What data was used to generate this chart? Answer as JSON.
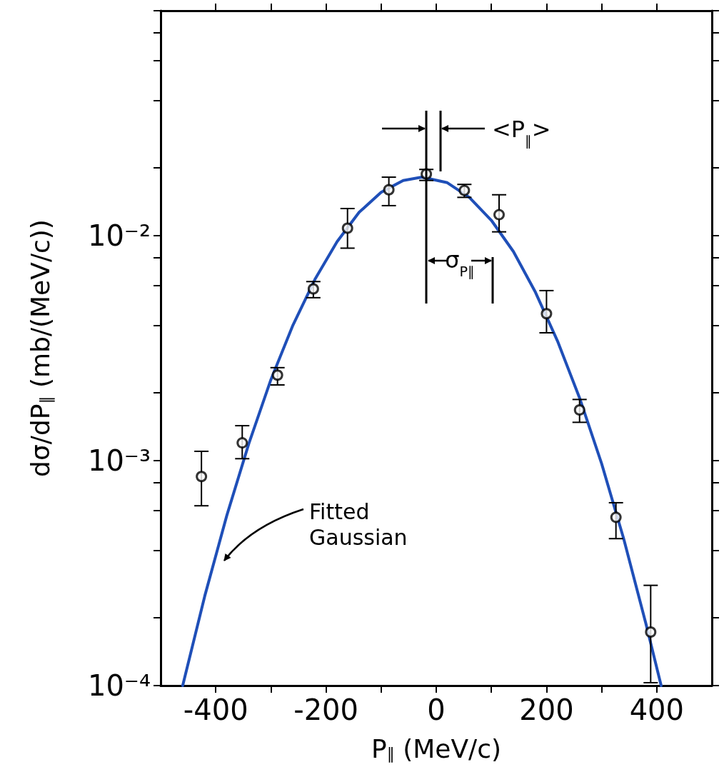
{
  "chart_data": {
    "type": "scatter",
    "xlabel": "P$_{∥}$ (MeV/c)",
    "ylabel": "dσ/dP$_{∥}$ (mb/(MeV/c))",
    "log": "y",
    "grid": false,
    "xlim": [
      -500,
      500
    ],
    "xticks": [
      -400,
      {
        "value": -300,
        "label": null
      },
      -200,
      {
        "value": -100,
        "label": null
      },
      0,
      {
        "value": 100,
        "label": null
      },
      200,
      {
        "value": 300,
        "label": null
      },
      400
    ],
    "ylim": [
      0.0001,
      0.1
    ],
    "yticks": [
      {
        "value": 0.0001,
        "label": "10⁻⁴"
      },
      {
        "value": 0.0002,
        "label": null
      },
      {
        "value": 0.0004,
        "label": null
      },
      {
        "value": 0.0006,
        "label": null
      },
      {
        "value": 0.0008,
        "label": null
      },
      {
        "value": 0.001,
        "label": "10⁻³"
      },
      {
        "value": 0.002,
        "label": null
      },
      {
        "value": 0.004,
        "label": null
      },
      {
        "value": 0.006,
        "label": null
      },
      {
        "value": 0.008,
        "label": null
      },
      {
        "value": 0.01,
        "label": "10⁻²"
      },
      {
        "value": 0.02,
        "label": null
      },
      {
        "value": 0.04,
        "label": null
      },
      {
        "value": 0.06,
        "label": null
      },
      {
        "value": 0.08,
        "label": null
      },
      {
        "value": 0.1,
        "label": null
      }
    ],
    "series": [
      {
        "type": "line",
        "color": "#1f4fb8",
        "marker": "none",
        "line_style": "solid",
        "x": [
          -460,
          -420,
          -380,
          -340,
          -300,
          -260,
          -220,
          -180,
          -140,
          -100,
          -60,
          -26,
          20,
          60,
          100,
          140,
          180,
          220,
          260,
          300,
          340,
          380,
          408
        ],
        "values": [
          0.0001,
          0.00025,
          0.00057,
          0.00119,
          0.00229,
          0.004,
          0.0064,
          0.0094,
          0.0127,
          0.0156,
          0.0176,
          0.0182,
          0.0172,
          0.0148,
          0.0117,
          0.0085,
          0.0056,
          0.0034,
          0.0019,
          0.00097,
          0.00045,
          0.00019,
          0.0001
        ]
      },
      {
        "color": "#000000",
        "marker": "circle",
        "x": [
          -426,
          -352,
          -288,
          -223,
          -161,
          -86,
          -18,
          51,
          114,
          200,
          260,
          326,
          389
        ],
        "values": [
          0.00085,
          0.0012,
          0.0024,
          0.0058,
          0.0108,
          0.016,
          0.0188,
          0.0159,
          0.0124,
          0.0045,
          0.00168,
          0.00056,
          0.000173
        ],
        "errors": [
          [
            0.00063,
            0.0011
          ],
          [
            0.00102,
            0.00143
          ],
          [
            0.00217,
            0.00259
          ],
          [
            0.0053,
            0.00625
          ],
          [
            0.0088,
            0.0132
          ],
          [
            0.0136,
            0.0182
          ],
          [
            0.0176,
            0.0197
          ],
          [
            0.0148,
            0.0169
          ],
          [
            0.0104,
            0.0152
          ],
          [
            0.0037,
            0.0057
          ],
          [
            0.00148,
            0.00187
          ],
          [
            0.00045,
            0.00065
          ],
          [
            0.000103,
            0.000279
          ]
        ]
      }
    ],
    "annotations": [
      "Fitted\nGaussian",
      "<P$_{∥}$>",
      "σ$_{P∥}$"
    ]
  }
}
